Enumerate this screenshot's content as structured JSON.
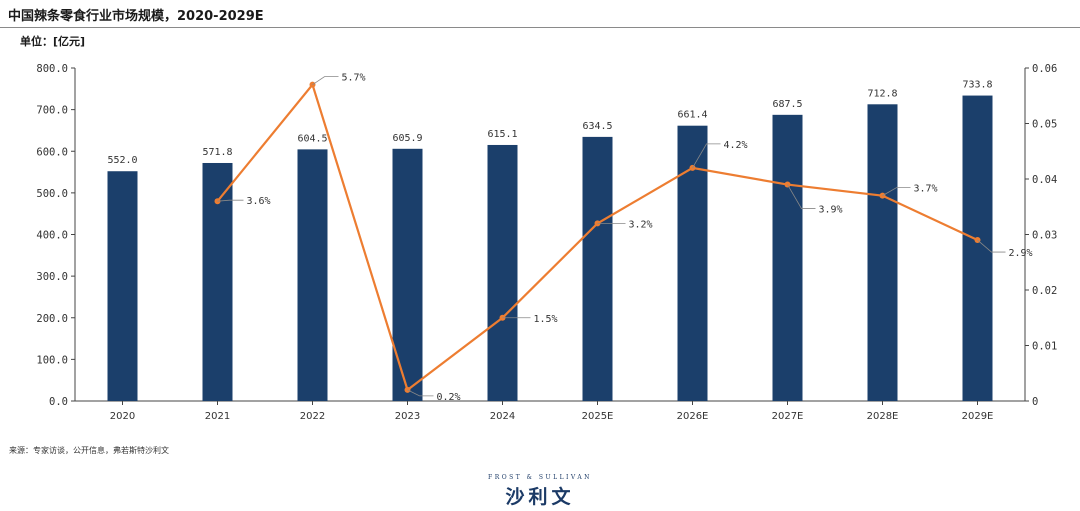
{
  "header": {
    "title": "中国辣条零食行业市场规模，2020-2029E",
    "unit": "单位：[亿元]"
  },
  "footer": {
    "source": "来源：专家访谈，公开信息，弗若斯特沙利文",
    "logo_en": "FROST & SULLIVAN",
    "logo_cn": "沙利文"
  },
  "colors": {
    "bar": "#1b3f6b",
    "line": "#ed7d31",
    "axis": "#444444",
    "label_leader": "#888888"
  },
  "chart_data": {
    "type": "bar",
    "categories": [
      "2020",
      "2021",
      "2022",
      "2023",
      "2024",
      "2025E",
      "2026E",
      "2027E",
      "2028E",
      "2029E"
    ],
    "series": [
      {
        "type": "bar",
        "axis": "left",
        "values": [
          552.0,
          571.8,
          604.5,
          605.9,
          615.1,
          634.5,
          661.4,
          687.5,
          712.8,
          733.8
        ],
        "value_labels": [
          "552.0",
          "571.8",
          "604.5",
          "605.9",
          "615.1",
          "634.5",
          "661.4",
          "687.5",
          "712.8",
          "733.8"
        ]
      },
      {
        "type": "line",
        "axis": "right",
        "values": [
          null,
          0.036,
          0.057,
          0.002,
          0.015,
          0.032,
          0.042,
          0.039,
          0.037,
          0.029
        ],
        "value_labels": [
          null,
          "3.6%",
          "5.7%",
          "0.2%",
          "1.5%",
          "3.2%",
          "4.2%",
          "3.9%",
          "3.7%",
          "2.9%"
        ]
      }
    ],
    "y_left": {
      "range": [
        0,
        800
      ],
      "ticks": [
        "0.0",
        "100.0",
        "200.0",
        "300.0",
        "400.0",
        "500.0",
        "600.0",
        "700.0",
        "800.0"
      ]
    },
    "y_right": {
      "range": [
        0,
        0.06
      ],
      "ticks": [
        "0",
        "0.01",
        "0.02",
        "0.03",
        "0.04",
        "0.05",
        "0.06"
      ]
    },
    "grid": false,
    "legend": "none"
  }
}
